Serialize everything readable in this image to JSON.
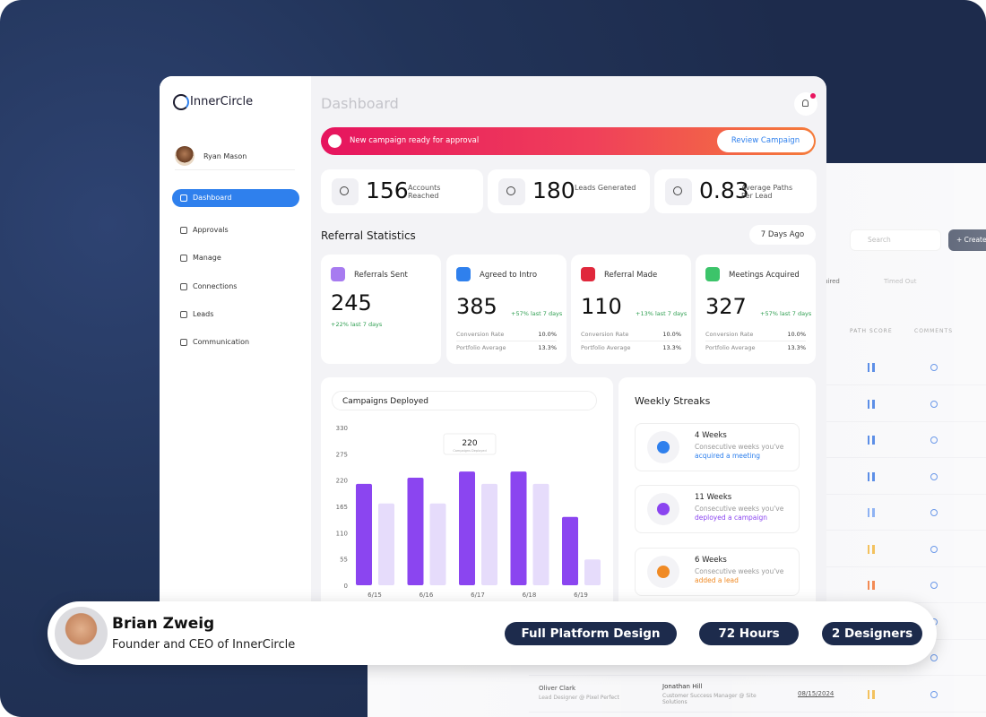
{
  "sidebar": {
    "brand": "InnerCircle",
    "user": "Ryan Mason",
    "nav": [
      "Dashboard",
      "Approvals",
      "Manage",
      "Connections",
      "Leads",
      "Communication"
    ]
  },
  "header": {
    "title": "Dashboard"
  },
  "banner": {
    "text": "New campaign ready for approval",
    "button": "Review Campaign"
  },
  "stats": [
    {
      "value": 156,
      "label": "Accounts Reached"
    },
    {
      "value": 180,
      "label": "Leads Generated"
    },
    {
      "value": 0.83,
      "label": "Average Paths Per Lead"
    }
  ],
  "referral": {
    "title": "Referral Statistics",
    "range": "7 Days Ago",
    "cards": [
      {
        "name": "Referrals Sent",
        "value": 245,
        "change": "+22% last 7 days",
        "color": "#a77bf0",
        "rows": []
      },
      {
        "name": "Agreed to Intro",
        "value": 385,
        "change": "+57% last 7 days",
        "color": "#2f80ed",
        "rows": [
          [
            "Conversion Rate",
            "10.0%"
          ],
          [
            "Portfolio Average",
            "13.3%"
          ]
        ]
      },
      {
        "name": "Referral Made",
        "value": 110,
        "change": "+13% last 7 days",
        "color": "#e0283c",
        "rows": [
          [
            "Conversion Rate",
            "10.0%"
          ],
          [
            "Portfolio Average",
            "13.3%"
          ]
        ]
      },
      {
        "name": "Meetings Acquired",
        "value": 327,
        "change": "+57% last 7 days",
        "color": "#3cc46a",
        "rows": [
          [
            "Conversion Rate",
            "10.0%"
          ],
          [
            "Portfolio Average",
            "13.3%"
          ]
        ]
      }
    ]
  },
  "campaigns": {
    "type": "bar",
    "title": "Campaigns Deployed",
    "categories": [
      "6/15",
      "6/16",
      "6/17",
      "6/18",
      "6/19"
    ],
    "series": [
      {
        "color": "#8b45f0",
        "values": [
          212,
          225,
          238,
          238,
          143
        ]
      },
      {
        "color": "#e6dcfb",
        "values": [
          171,
          171,
          212,
          212,
          54
        ]
      }
    ],
    "ylim": [
      0,
      330
    ],
    "yticks": [
      0,
      55,
      110,
      165,
      220,
      275,
      330
    ],
    "tooltip": {
      "value": 220,
      "label": "Campaigns Deployed"
    }
  },
  "streaks": {
    "title": "Weekly Streaks",
    "items": [
      {
        "title": "4 Weeks",
        "text": "Consecutive weeks you've",
        "link": "acquired a meeting",
        "color": "#2f80ed"
      },
      {
        "title": "11 Weeks",
        "text": "Consecutive weeks you've",
        "link": "deployed a campaign",
        "color": "#8b45f0"
      },
      {
        "title": "6 Weeks",
        "text": "Consecutive weeks you've",
        "link": "added a lead",
        "color": "#f08a24"
      }
    ]
  },
  "back_panel": {
    "search": "Search",
    "create": "+ Create",
    "tabs": [
      "Acquired",
      "Timed Out"
    ],
    "headers": [
      "PATH SCORE",
      "COMMENTS"
    ],
    "row": {
      "name": "Oliver Clark",
      "role": "Lead Designer @ Pixel Perfect",
      "contact": "Jonathan Hill",
      "contact_role": "Customer Success Manager @ Site Solutions",
      "date": "08/15/2024"
    }
  },
  "testimonial": {
    "name": "Brian Zweig",
    "role": "Founder and CEO of InnerCircle",
    "tags": [
      "Full Platform Design",
      "72 Hours",
      "2 Designers"
    ]
  }
}
